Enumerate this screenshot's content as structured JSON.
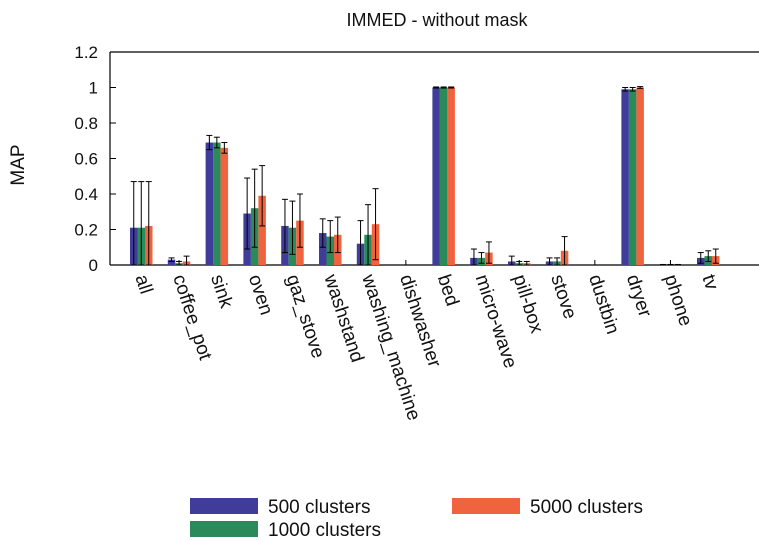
{
  "chart_data": {
    "type": "bar",
    "title": "IMMED - without mask",
    "xlabel": "",
    "ylabel": "MAP",
    "ylim": [
      0,
      1.2
    ],
    "yticks": [
      "0",
      "0.2",
      "0.4",
      "0.6",
      "0.8",
      "1",
      "1.2"
    ],
    "grid": false,
    "legend_position": "bottom",
    "categories": [
      "all",
      "coffee_pot",
      "sink",
      "oven",
      "gaz_stove",
      "washstand",
      "washing_machine",
      "dishwasher",
      "bed",
      "micro-wave",
      "pill-box",
      "stove",
      "dustbin",
      "dryer",
      "phone",
      "tv"
    ],
    "series": [
      {
        "name": "500 clusters",
        "color": "#3f3d99",
        "values": [
          0.21,
          0.03,
          0.69,
          0.29,
          0.22,
          0.18,
          0.12,
          0,
          1.0,
          0.04,
          0.02,
          0.02,
          0,
          0.99,
          0,
          0.04
        ],
        "errors": [
          0.26,
          0.01,
          0.04,
          0.2,
          0.15,
          0.08,
          0.13,
          0,
          0.003,
          0.05,
          0.03,
          0.02,
          0,
          0.01,
          0.003,
          0.03
        ]
      },
      {
        "name": "1000 clusters",
        "color": "#2a8a5a",
        "values": [
          0.21,
          0.01,
          0.69,
          0.32,
          0.21,
          0.16,
          0.17,
          0,
          1.0,
          0.04,
          0.01,
          0.02,
          0,
          0.99,
          0,
          0.05
        ],
        "errors": [
          0.26,
          0.01,
          0.03,
          0.22,
          0.15,
          0.09,
          0.17,
          0,
          0.003,
          0.03,
          0.01,
          0.02,
          0,
          0.01,
          0.003,
          0.03
        ]
      },
      {
        "name": "5000 clusters",
        "color": "#f0633f",
        "values": [
          0.22,
          0.02,
          0.66,
          0.39,
          0.25,
          0.17,
          0.23,
          0,
          1.0,
          0.07,
          0.01,
          0.08,
          0,
          1.0,
          0,
          0.05
        ],
        "errors": [
          0.25,
          0.03,
          0.03,
          0.17,
          0.15,
          0.1,
          0.2,
          0,
          0.003,
          0.06,
          0.01,
          0.08,
          0,
          0.005,
          0.003,
          0.04
        ]
      }
    ]
  }
}
